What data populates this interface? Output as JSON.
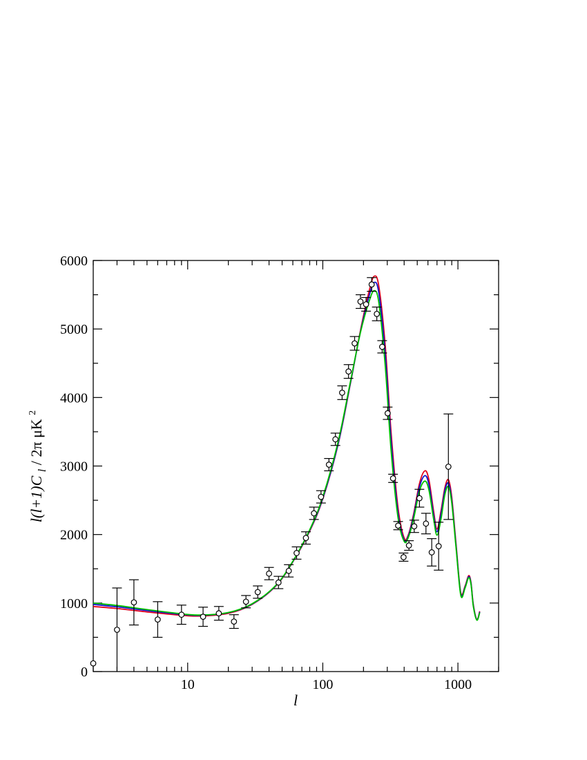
{
  "chart_data": {
    "type": "scatter",
    "title": "",
    "xlabel": "l",
    "ylabel": {
      "main": "l(l+1)C",
      "sub": "l",
      "unit": " / 2π μK",
      "sup": "2"
    },
    "x_scale": "log",
    "xlim": [
      2,
      2000
    ],
    "ylim": [
      0,
      6000
    ],
    "grid": false,
    "x_ticks": [
      {
        "value": 10,
        "label": "10"
      },
      {
        "value": 100,
        "label": "100"
      },
      {
        "value": 1000,
        "label": "1000"
      }
    ],
    "y_ticks": [
      {
        "value": 0,
        "label": "0"
      },
      {
        "value": 1000,
        "label": "1000"
      },
      {
        "value": 2000,
        "label": "2000"
      },
      {
        "value": 3000,
        "label": "3000"
      },
      {
        "value": 4000,
        "label": "4000"
      },
      {
        "value": 5000,
        "label": "5000"
      },
      {
        "value": 6000,
        "label": "6000"
      }
    ],
    "observations": [
      {
        "x": 2,
        "y": 120,
        "err": 0
      },
      {
        "x": 3,
        "y": 610,
        "err": 610
      },
      {
        "x": 4,
        "y": 1010,
        "err": 330
      },
      {
        "x": 6,
        "y": 760,
        "err": 260
      },
      {
        "x": 9,
        "y": 830,
        "err": 140
      },
      {
        "x": 13,
        "y": 800,
        "err": 140
      },
      {
        "x": 17,
        "y": 850,
        "err": 100
      },
      {
        "x": 22,
        "y": 730,
        "err": 100
      },
      {
        "x": 27,
        "y": 1020,
        "err": 90
      },
      {
        "x": 33,
        "y": 1160,
        "err": 90
      },
      {
        "x": 40,
        "y": 1430,
        "err": 90
      },
      {
        "x": 47,
        "y": 1300,
        "err": 90
      },
      {
        "x": 56,
        "y": 1470,
        "err": 90
      },
      {
        "x": 64,
        "y": 1730,
        "err": 90
      },
      {
        "x": 75,
        "y": 1950,
        "err": 90
      },
      {
        "x": 86,
        "y": 2310,
        "err": 90
      },
      {
        "x": 97,
        "y": 2550,
        "err": 90
      },
      {
        "x": 111,
        "y": 3020,
        "err": 90
      },
      {
        "x": 124,
        "y": 3390,
        "err": 90
      },
      {
        "x": 139,
        "y": 4070,
        "err": 100
      },
      {
        "x": 155,
        "y": 4380,
        "err": 100
      },
      {
        "x": 172,
        "y": 4790,
        "err": 100
      },
      {
        "x": 190,
        "y": 5400,
        "err": 100
      },
      {
        "x": 209,
        "y": 5360,
        "err": 100
      },
      {
        "x": 230,
        "y": 5650,
        "err": 100
      },
      {
        "x": 251,
        "y": 5220,
        "err": 100
      },
      {
        "x": 275,
        "y": 4740,
        "err": 90
      },
      {
        "x": 302,
        "y": 3770,
        "err": 90
      },
      {
        "x": 331,
        "y": 2820,
        "err": 60
      },
      {
        "x": 361,
        "y": 2130,
        "err": 60
      },
      {
        "x": 396,
        "y": 1670,
        "err": 60
      },
      {
        "x": 434,
        "y": 1840,
        "err": 70
      },
      {
        "x": 475,
        "y": 2120,
        "err": 90
      },
      {
        "x": 519,
        "y": 2530,
        "err": 130
      },
      {
        "x": 580,
        "y": 2160,
        "err": 150
      },
      {
        "x": 640,
        "y": 1740,
        "err": 200
      },
      {
        "x": 720,
        "y": 1830,
        "err": 350
      },
      {
        "x": 850,
        "y": 2990,
        "err": 770
      }
    ],
    "series": [
      {
        "color": "#e0001c",
        "x": [
          2,
          3,
          5,
          8,
          12,
          20,
          30,
          45,
          60,
          80,
          100,
          130,
          160,
          190,
          220,
          240,
          260,
          290,
          320,
          360,
          400,
          430,
          470,
          520,
          570,
          610,
          660,
          700,
          750,
          800,
          850,
          900,
          970,
          1050,
          1130,
          1200,
          1250,
          1300,
          1380,
          1450
        ],
        "y": [
          950,
          920,
          870,
          830,
          810,
          850,
          980,
          1250,
          1600,
          2050,
          2520,
          3320,
          4200,
          4980,
          5550,
          5770,
          5620,
          4750,
          3500,
          2400,
          1950,
          2000,
          2300,
          2750,
          2930,
          2800,
          2350,
          2080,
          2350,
          2680,
          2800,
          2550,
          1850,
          1150,
          1250,
          1400,
          1300,
          980,
          760,
          880
        ]
      },
      {
        "color": "#1010cc",
        "x": [
          2,
          3,
          5,
          8,
          12,
          20,
          30,
          45,
          60,
          80,
          100,
          130,
          160,
          190,
          220,
          240,
          260,
          290,
          320,
          360,
          400,
          430,
          470,
          520,
          570,
          610,
          660,
          700,
          750,
          800,
          850,
          900,
          970,
          1050,
          1130,
          1200,
          1250,
          1300,
          1380,
          1450
        ],
        "y": [
          980,
          945,
          890,
          845,
          820,
          860,
          985,
          1255,
          1605,
          2060,
          2530,
          3330,
          4210,
          4960,
          5480,
          5680,
          5520,
          4620,
          3380,
          2320,
          1920,
          1980,
          2270,
          2700,
          2860,
          2730,
          2290,
          2040,
          2300,
          2640,
          2750,
          2500,
          1820,
          1130,
          1235,
          1385,
          1285,
          965,
          755,
          870
        ]
      },
      {
        "color": "#00c000",
        "x": [
          2,
          3,
          5,
          8,
          12,
          20,
          30,
          45,
          60,
          80,
          100,
          130,
          160,
          190,
          220,
          240,
          260,
          290,
          320,
          360,
          400,
          430,
          470,
          520,
          570,
          610,
          660,
          700,
          750,
          800,
          850,
          900,
          970,
          1050,
          1130,
          1200,
          1250,
          1300,
          1380,
          1450
        ],
        "y": [
          1000,
          965,
          905,
          855,
          825,
          862,
          990,
          1260,
          1610,
          2070,
          2550,
          3360,
          4230,
          4950,
          5400,
          5560,
          5380,
          4450,
          3230,
          2250,
          1900,
          1960,
          2230,
          2640,
          2780,
          2650,
          2230,
          1990,
          2230,
          2580,
          2700,
          2460,
          1790,
          1110,
          1220,
          1370,
          1270,
          950,
          750,
          860
        ]
      }
    ]
  }
}
